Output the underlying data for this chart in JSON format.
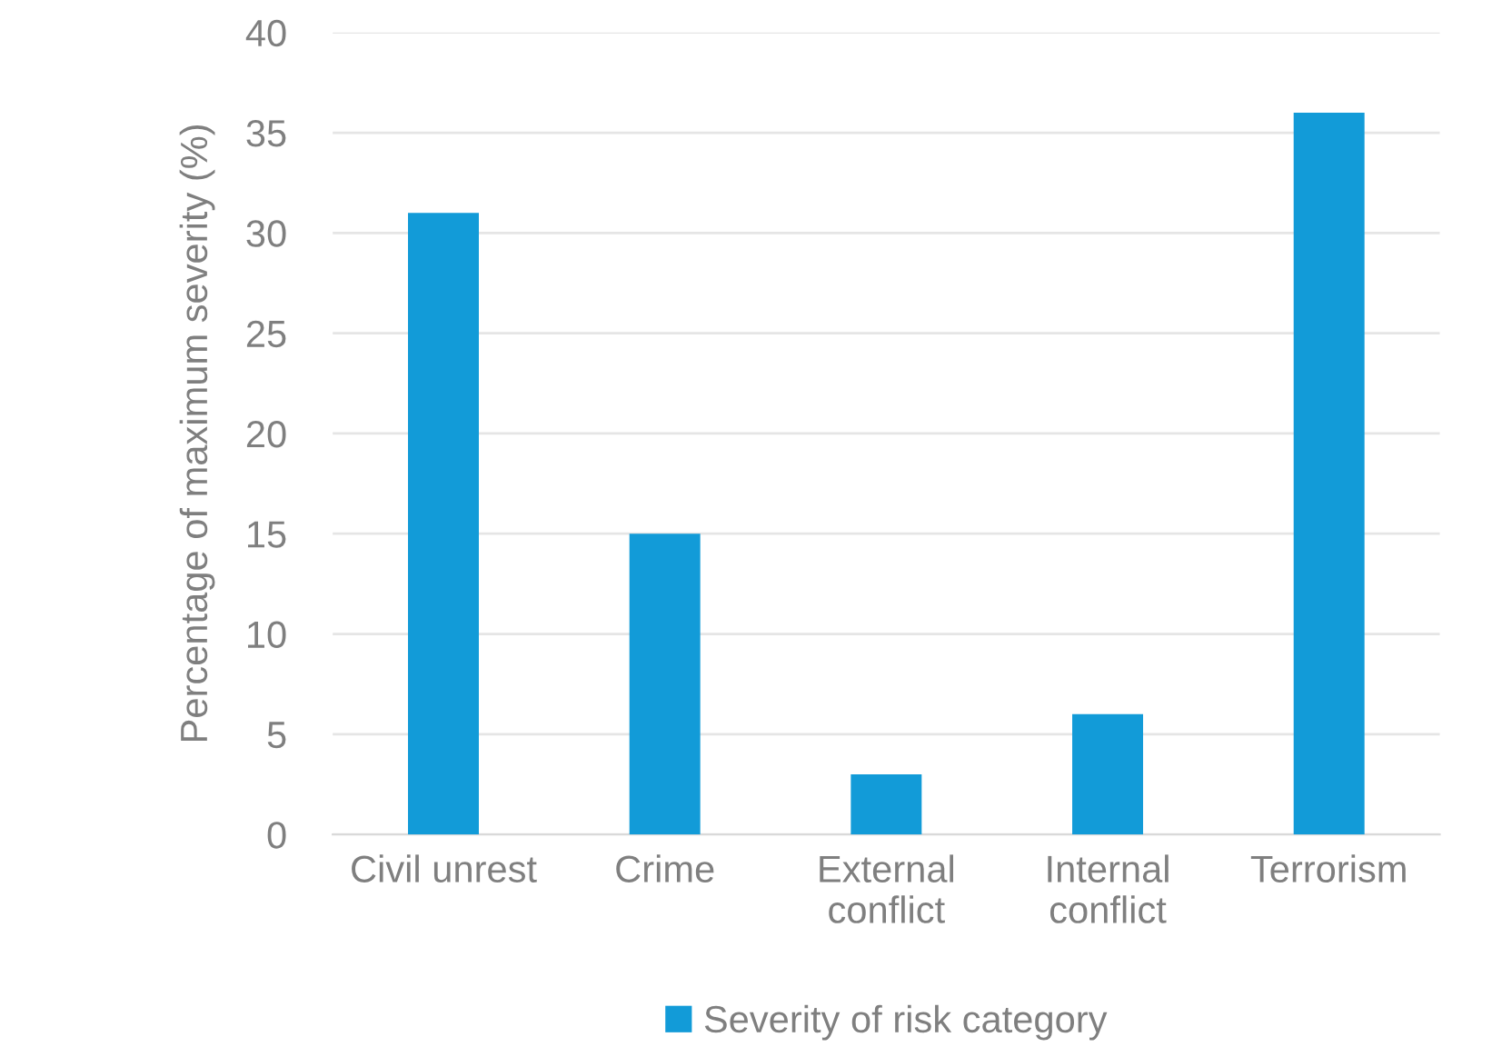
{
  "chart_data": {
    "type": "bar",
    "ylabel": "Percentage of maximum severity (%)",
    "categories": [
      "Civil unrest",
      "Crime",
      "External\nconflict",
      "Internal\nconflict",
      "Terrorism"
    ],
    "series": [
      {
        "name": "Severity of risk category",
        "color": "#129bd8",
        "values": [
          31,
          15,
          3,
          6,
          36
        ]
      }
    ],
    "ylim": [
      0,
      40
    ],
    "yticks": [
      0,
      5,
      10,
      15,
      20,
      25,
      30,
      35,
      40
    ],
    "grid": "y",
    "legend": "bottom"
  }
}
